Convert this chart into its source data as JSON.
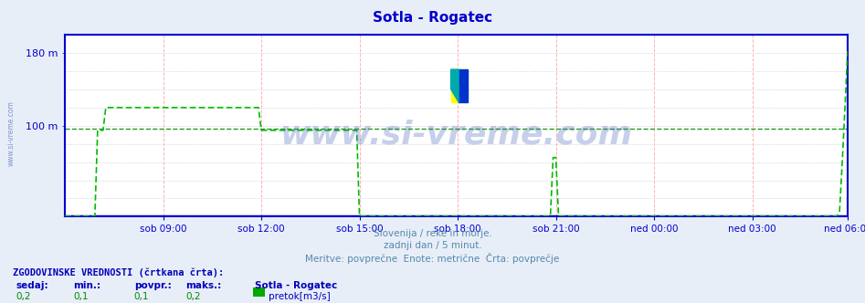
{
  "title": "Sotla - Rogatec",
  "title_color": "#0000cc",
  "bg_color": "#e8eef8",
  "plot_bg_color": "#ffffff",
  "outer_bg_color": "#e8eef8",
  "axis_color": "#0000cc",
  "grid_color_v": "#ffaaaa",
  "grid_color_h": "#bbbbcc",
  "ymin": 0,
  "ymax": 200,
  "ytick_vals": [
    100,
    180
  ],
  "ytick_labels": [
    "100 m",
    "180 m"
  ],
  "n_points": 288,
  "xtick_labels": [
    "sob 09:00",
    "sob 12:00",
    "sob 15:00",
    "sob 18:00",
    "sob 21:00",
    "ned 00:00",
    "ned 03:00",
    "ned 06:00"
  ],
  "xtick_positions": [
    36,
    72,
    108,
    144,
    180,
    216,
    252,
    287
  ],
  "watermark": "www.si-vreme.com",
  "watermark_color": "#4466bb",
  "watermark_alpha": 0.3,
  "subtitle1": "Slovenija / reke in morje.",
  "subtitle2": "zadnji dan / 5 minut.",
  "subtitle3": "Meritve: povprečne  Enote: metrične  Črta: povprečje",
  "subtitle_color": "#5588aa",
  "hist_label": "ZGODOVINSKE VREDNOSTI (črtkana črta):",
  "hist_color": "#0000bb",
  "stats_label_color": "#0000bb",
  "stats_value_color": "#008800",
  "flow_color": "#00bb00",
  "avg_line_value": 97,
  "avg_line_color": "#008800",
  "blue_line_color": "#0000cc",
  "legend_label": "Sotla - Rogatec",
  "legend_series": "pretok[m3/s]",
  "legend_color": "#00aa00",
  "logo_yellow": "#ffff00",
  "logo_blue": "#0033cc",
  "logo_teal": "#00aaaa"
}
